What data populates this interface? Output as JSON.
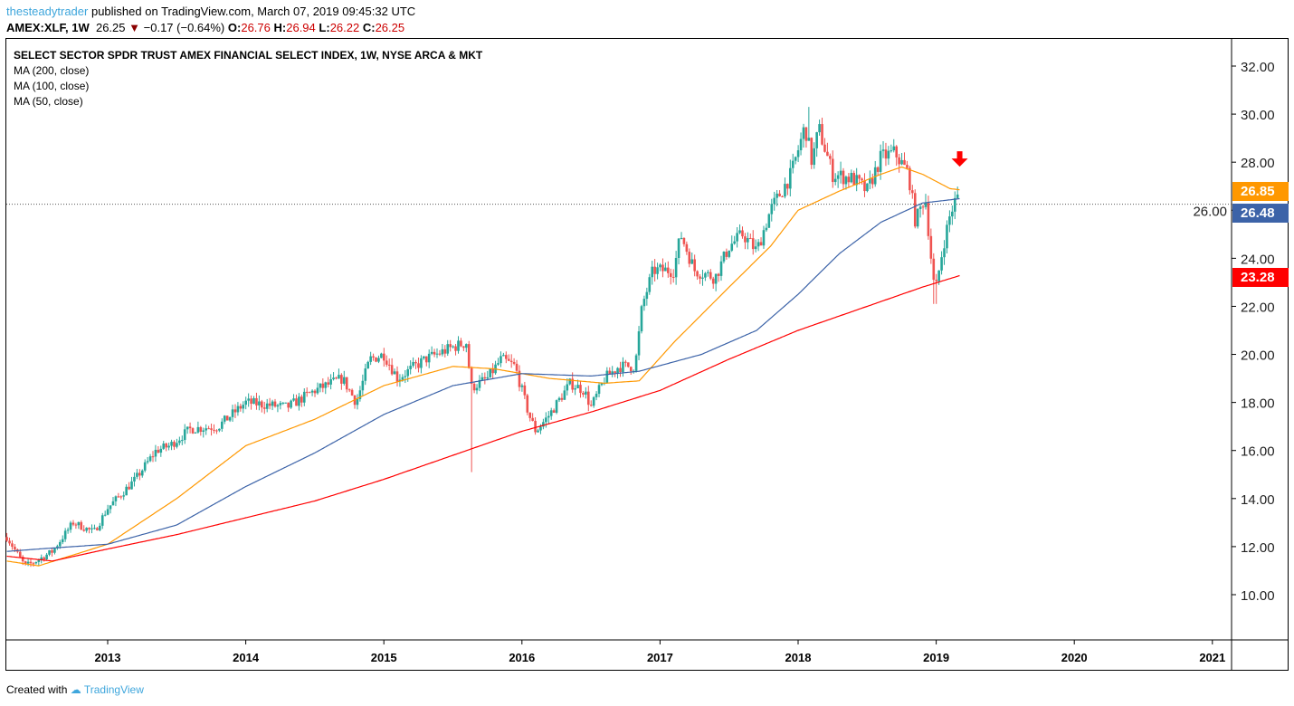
{
  "header": {
    "user": "thesteadytrader",
    "published": "published on TradingView.com, March 07, 2019 09:45:32 UTC",
    "symbol": "AMEX:XLF, 1W",
    "last": "26.25",
    "change": "−0.17 (−0.64%)",
    "o_label": "O:",
    "o": "26.76",
    "h_label": "H:",
    "h": "26.94",
    "l_label": "L:",
    "l": "26.22",
    "c_label": "C:",
    "c": "26.25"
  },
  "legend": {
    "title": "SELECT SECTOR SPDR TRUST AMEX FINANCIAL SELECT INDEX, 1W, NYSE ARCA & MKT",
    "ma200": "MA (200, close)",
    "ma100": "MA (100, close)",
    "ma50": "MA (50, close)"
  },
  "price_labels": {
    "ma50": "26.85",
    "ma100": "26.48",
    "ma200": "23.28"
  },
  "footer": {
    "created": "Created with",
    "brand": "TradingView"
  },
  "colors": {
    "up": "#26a69a",
    "down": "#ef5350",
    "ma50": "#ff9800",
    "ma100": "#3c63a8",
    "ma200": "#ff0000"
  },
  "chart_data": {
    "type": "candlestick",
    "title": "SELECT SECTOR SPDR TRUST AMEX FINANCIAL SELECT INDEX, 1W",
    "ylim": [
      8,
      33
    ],
    "xlim": [
      2012.27,
      2021.15
    ],
    "yticks": [
      "10.00",
      "12.00",
      "14.00",
      "16.00",
      "18.00",
      "20.00",
      "22.00",
      "24.00",
      "26.00",
      "28.00",
      "30.00",
      "32.00"
    ],
    "xticks": [
      "2013",
      "2014",
      "2015",
      "2016",
      "2017",
      "2018",
      "2019",
      "2020",
      "2021"
    ],
    "current_price": 26.25,
    "price_path": [
      [
        2012.27,
        12.4
      ],
      [
        2012.4,
        11.2
      ],
      [
        2012.45,
        11.3
      ],
      [
        2012.6,
        11.8
      ],
      [
        2012.75,
        13.0
      ],
      [
        2012.9,
        12.6
      ],
      [
        2013.0,
        13.6
      ],
      [
        2013.2,
        14.8
      ],
      [
        2013.35,
        16.0
      ],
      [
        2013.45,
        16.2
      ],
      [
        2013.6,
        16.9
      ],
      [
        2013.8,
        17.0
      ],
      [
        2014.0,
        18.0
      ],
      [
        2014.3,
        17.8
      ],
      [
        2014.5,
        18.5
      ],
      [
        2014.7,
        19.0
      ],
      [
        2014.8,
        18.0
      ],
      [
        2014.9,
        19.8
      ],
      [
        2015.0,
        20.0
      ],
      [
        2015.1,
        19.0
      ],
      [
        2015.3,
        19.8
      ],
      [
        2015.5,
        20.3
      ],
      [
        2015.6,
        20.5
      ],
      [
        2015.63,
        18.6
      ],
      [
        2015.75,
        19.0
      ],
      [
        2015.85,
        19.8
      ],
      [
        2015.95,
        19.5
      ],
      [
        2016.05,
        17.5
      ],
      [
        2016.1,
        16.8
      ],
      [
        2016.2,
        17.5
      ],
      [
        2016.35,
        18.8
      ],
      [
        2016.45,
        18.5
      ],
      [
        2016.5,
        17.8
      ],
      [
        2016.6,
        19.0
      ],
      [
        2016.7,
        19.5
      ],
      [
        2016.82,
        19.5
      ],
      [
        2016.87,
        22.0
      ],
      [
        2016.95,
        23.5
      ],
      [
        2017.1,
        23.5
      ],
      [
        2017.15,
        25.0
      ],
      [
        2017.25,
        23.5
      ],
      [
        2017.4,
        23.2
      ],
      [
        2017.5,
        24.5
      ],
      [
        2017.6,
        25.0
      ],
      [
        2017.7,
        24.3
      ],
      [
        2017.8,
        26.0
      ],
      [
        2017.95,
        27.5
      ],
      [
        2018.05,
        29.5
      ],
      [
        2018.1,
        28.0
      ],
      [
        2018.15,
        29.4
      ],
      [
        2018.25,
        27.5
      ],
      [
        2018.4,
        27.3
      ],
      [
        2018.5,
        26.8
      ],
      [
        2018.6,
        28.2
      ],
      [
        2018.7,
        28.4
      ],
      [
        2018.8,
        27.5
      ],
      [
        2018.85,
        25.5
      ],
      [
        2018.92,
        26.6
      ],
      [
        2018.98,
        23.0
      ],
      [
        2019.0,
        22.8
      ],
      [
        2019.05,
        24.5
      ],
      [
        2019.1,
        25.8
      ],
      [
        2019.15,
        26.6
      ],
      [
        2019.17,
        26.25
      ]
    ],
    "series": [
      {
        "name": "MA (50, close)",
        "color": "#ff9800",
        "points": [
          [
            2012.27,
            11.4
          ],
          [
            2012.5,
            11.2
          ],
          [
            2013.0,
            12.1
          ],
          [
            2013.5,
            14.0
          ],
          [
            2014.0,
            16.2
          ],
          [
            2014.5,
            17.3
          ],
          [
            2015.0,
            18.7
          ],
          [
            2015.5,
            19.5
          ],
          [
            2015.8,
            19.4
          ],
          [
            2016.2,
            19.0
          ],
          [
            2016.6,
            18.8
          ],
          [
            2016.85,
            18.9
          ],
          [
            2017.1,
            20.5
          ],
          [
            2017.5,
            22.8
          ],
          [
            2017.8,
            24.5
          ],
          [
            2018.0,
            26.0
          ],
          [
            2018.3,
            26.8
          ],
          [
            2018.6,
            27.5
          ],
          [
            2018.75,
            27.8
          ],
          [
            2018.9,
            27.5
          ],
          [
            2019.1,
            26.9
          ],
          [
            2019.17,
            26.85
          ]
        ]
      },
      {
        "name": "MA (100, close)",
        "color": "#3c63a8",
        "points": [
          [
            2012.27,
            11.8
          ],
          [
            2012.5,
            11.9
          ],
          [
            2013.0,
            12.1
          ],
          [
            2013.5,
            12.9
          ],
          [
            2014.0,
            14.5
          ],
          [
            2014.5,
            15.9
          ],
          [
            2015.0,
            17.5
          ],
          [
            2015.5,
            18.7
          ],
          [
            2016.0,
            19.2
          ],
          [
            2016.5,
            19.1
          ],
          [
            2016.85,
            19.3
          ],
          [
            2017.3,
            20.0
          ],
          [
            2017.7,
            21.0
          ],
          [
            2018.0,
            22.5
          ],
          [
            2018.3,
            24.2
          ],
          [
            2018.6,
            25.5
          ],
          [
            2018.9,
            26.3
          ],
          [
            2019.17,
            26.48
          ]
        ]
      },
      {
        "name": "MA (200, close)",
        "color": "#ff0000",
        "points": [
          [
            2012.27,
            11.6
          ],
          [
            2012.6,
            11.4
          ],
          [
            2013.0,
            11.9
          ],
          [
            2013.5,
            12.5
          ],
          [
            2014.0,
            13.2
          ],
          [
            2014.5,
            13.9
          ],
          [
            2015.0,
            14.8
          ],
          [
            2015.5,
            15.8
          ],
          [
            2016.0,
            16.8
          ],
          [
            2016.5,
            17.6
          ],
          [
            2017.0,
            18.5
          ],
          [
            2017.5,
            19.8
          ],
          [
            2018.0,
            21.0
          ],
          [
            2018.5,
            22.0
          ],
          [
            2018.9,
            22.8
          ],
          [
            2019.17,
            23.28
          ]
        ]
      }
    ],
    "annotations": [
      {
        "type": "down-arrow",
        "x": 2019.17,
        "y": 28.0
      }
    ]
  }
}
